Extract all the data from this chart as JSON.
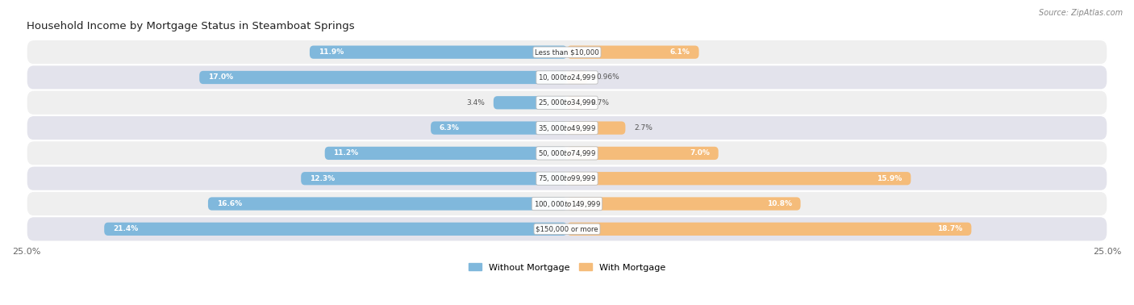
{
  "title": "Household Income by Mortgage Status in Steamboat Springs",
  "source": "Source: ZipAtlas.com",
  "categories": [
    "Less than $10,000",
    "$10,000 to $24,999",
    "$25,000 to $34,999",
    "$35,000 to $49,999",
    "$50,000 to $74,999",
    "$75,000 to $99,999",
    "$100,000 to $149,999",
    "$150,000 or more"
  ],
  "without_mortgage": [
    11.9,
    17.0,
    3.4,
    6.3,
    11.2,
    12.3,
    16.6,
    21.4
  ],
  "with_mortgage": [
    6.1,
    0.96,
    0.7,
    2.7,
    7.0,
    15.9,
    10.8,
    18.7
  ],
  "color_without": "#80B8DC",
  "color_with": "#F5BC7A",
  "axis_max": 25.0,
  "bar_height": 0.52,
  "legend_labels": [
    "Without Mortgage",
    "With Mortgage"
  ],
  "row_colors": [
    "#efefef",
    "#e3e3ec"
  ],
  "label_inside_threshold_wo": 5.0,
  "label_inside_threshold_wm": 5.0
}
